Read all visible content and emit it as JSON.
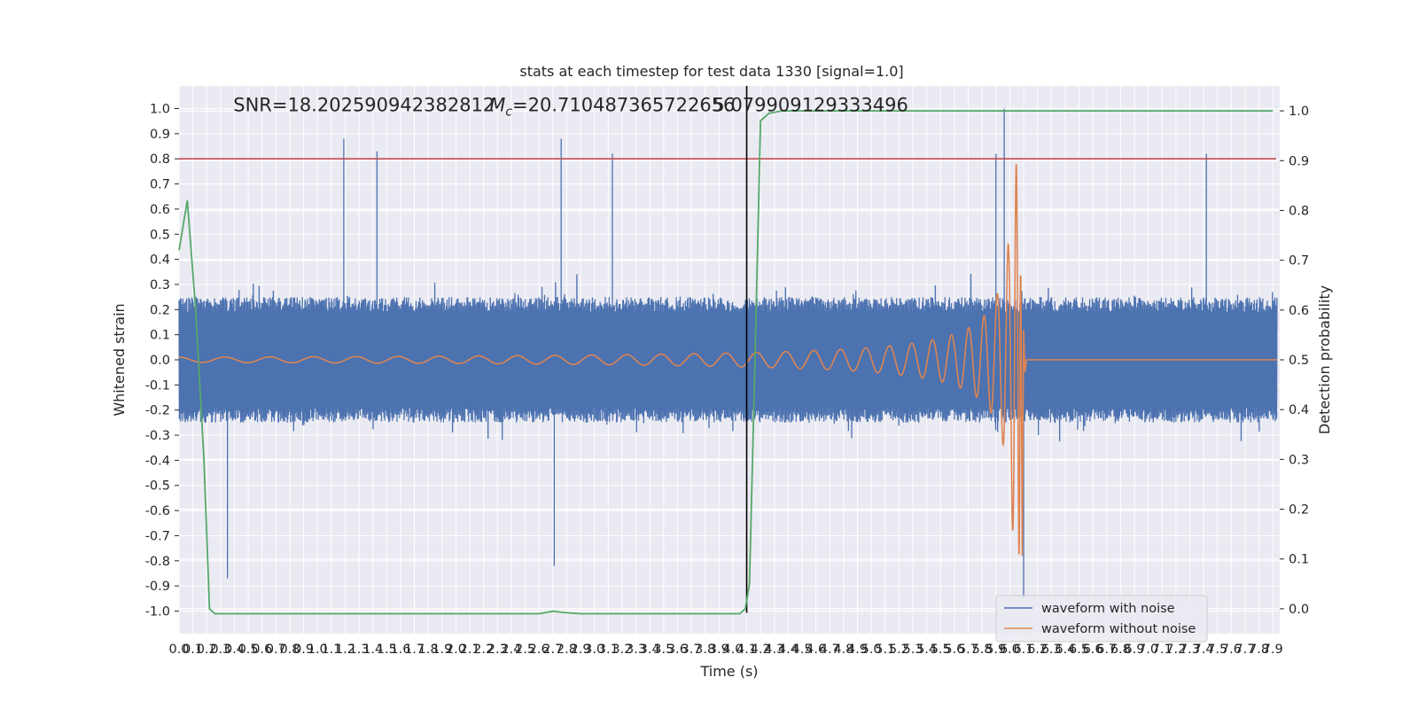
{
  "chart_data": {
    "type": "line",
    "title": "stats at each timestep for test data 1330 [signal=1.0]",
    "xlabel": "Time (s)",
    "ylabel": "Whitened strain",
    "y2label": "Detection probability",
    "xlim": [
      0.0,
      7.95
    ],
    "ylim": [
      -1.09,
      1.09
    ],
    "y2lim": [
      -0.05,
      1.05
    ],
    "xticks": [
      0.0,
      0.1,
      0.2,
      0.3,
      0.4,
      0.5,
      0.6,
      0.7,
      0.8,
      0.9,
      1.0,
      1.1,
      1.2,
      1.3,
      1.4,
      1.5,
      1.6,
      1.7,
      1.8,
      1.9,
      2.0,
      2.1,
      2.2,
      2.3,
      2.4,
      2.5,
      2.6,
      2.7,
      2.8,
      2.9,
      3.0,
      3.1,
      3.2,
      3.3,
      3.4,
      3.5,
      3.6,
      3.7,
      3.8,
      3.9,
      4.0,
      4.1,
      4.2,
      4.3,
      4.4,
      4.5,
      4.6,
      4.7,
      4.8,
      4.9,
      5.0,
      5.1,
      5.2,
      5.3,
      5.4,
      5.5,
      5.6,
      5.7,
      5.8,
      5.9,
      6.0,
      6.1,
      6.2,
      6.3,
      6.4,
      6.5,
      6.6,
      6.7,
      6.8,
      6.9,
      7.0,
      7.1,
      7.2,
      7.3,
      7.4,
      7.5,
      7.6,
      7.7,
      7.8,
      7.9
    ],
    "yticks": [
      -1.0,
      -0.9,
      -0.8,
      -0.7,
      -0.6,
      -0.5,
      -0.4,
      -0.3,
      -0.2,
      -0.1,
      0.0,
      0.1,
      0.2,
      0.3,
      0.4,
      0.5,
      0.6,
      0.7,
      0.8,
      0.9,
      1.0
    ],
    "y2ticks": [
      0.0,
      0.1,
      0.2,
      0.3,
      0.4,
      0.5,
      0.6,
      0.7,
      0.8,
      0.9,
      1.0
    ],
    "grid": true,
    "legend_position": "bottom-right",
    "series": [
      {
        "name": "waveform with noise",
        "color": "#4c72b0",
        "axis": "left",
        "kind": "noise",
        "envelope": 0.4,
        "max_peak": [
          5.96,
          1.0
        ],
        "min_peak": [
          6.1,
          -0.95
        ],
        "spikes": [
          [
            1.19,
            0.88
          ],
          [
            1.43,
            0.83
          ],
          [
            2.76,
            0.88
          ],
          [
            3.13,
            0.82
          ],
          [
            5.9,
            0.82
          ],
          [
            7.42,
            0.82
          ],
          [
            0.35,
            -0.87
          ],
          [
            2.71,
            -0.82
          ]
        ]
      },
      {
        "name": "waveform without noise",
        "color": "#dd8452",
        "axis": "left",
        "kind": "chirp",
        "merger_time": 6.08,
        "peak_amplitude": 0.78
      },
      {
        "name": "",
        "color": "#55a868",
        "axis": "right",
        "kind": "line",
        "x": [
          0.0,
          0.06,
          0.12,
          0.18,
          0.22,
          0.26,
          0.5,
          1.0,
          2.0,
          2.6,
          2.7,
          2.8,
          2.9,
          3.5,
          4.0,
          4.05,
          4.09,
          4.12,
          4.16,
          4.2,
          4.26,
          4.35,
          4.5,
          5.0,
          6.0,
          7.0,
          7.9
        ],
        "y": [
          0.72,
          0.82,
          0.6,
          0.3,
          0.0,
          -0.01,
          -0.01,
          -0.01,
          -0.01,
          -0.01,
          -0.005,
          -0.008,
          -0.01,
          -0.01,
          -0.01,
          -0.01,
          0.0,
          0.05,
          0.5,
          0.98,
          0.995,
          1.0,
          1.0,
          1.0,
          1.0,
          1.0,
          1.0
        ]
      }
    ],
    "hlines": [
      {
        "y": 0.8,
        "color": "#c44e52"
      }
    ],
    "vlines": [
      {
        "x": 4.1,
        "color": "#000000",
        "ymin": -1.0,
        "ymax": 1.05
      }
    ],
    "annotations": [
      {
        "text": "SNR=18.202590942382812",
        "x": 0.2,
        "y": 0.99
      },
      {
        "text_prefix": "M",
        "text_sub": "c",
        "text_rest": "=20.710487365722656",
        "x": 2.6,
        "y": 0.99
      },
      {
        "text": "5.079909129333496",
        "x": 3.6,
        "y": 0.99
      }
    ]
  }
}
